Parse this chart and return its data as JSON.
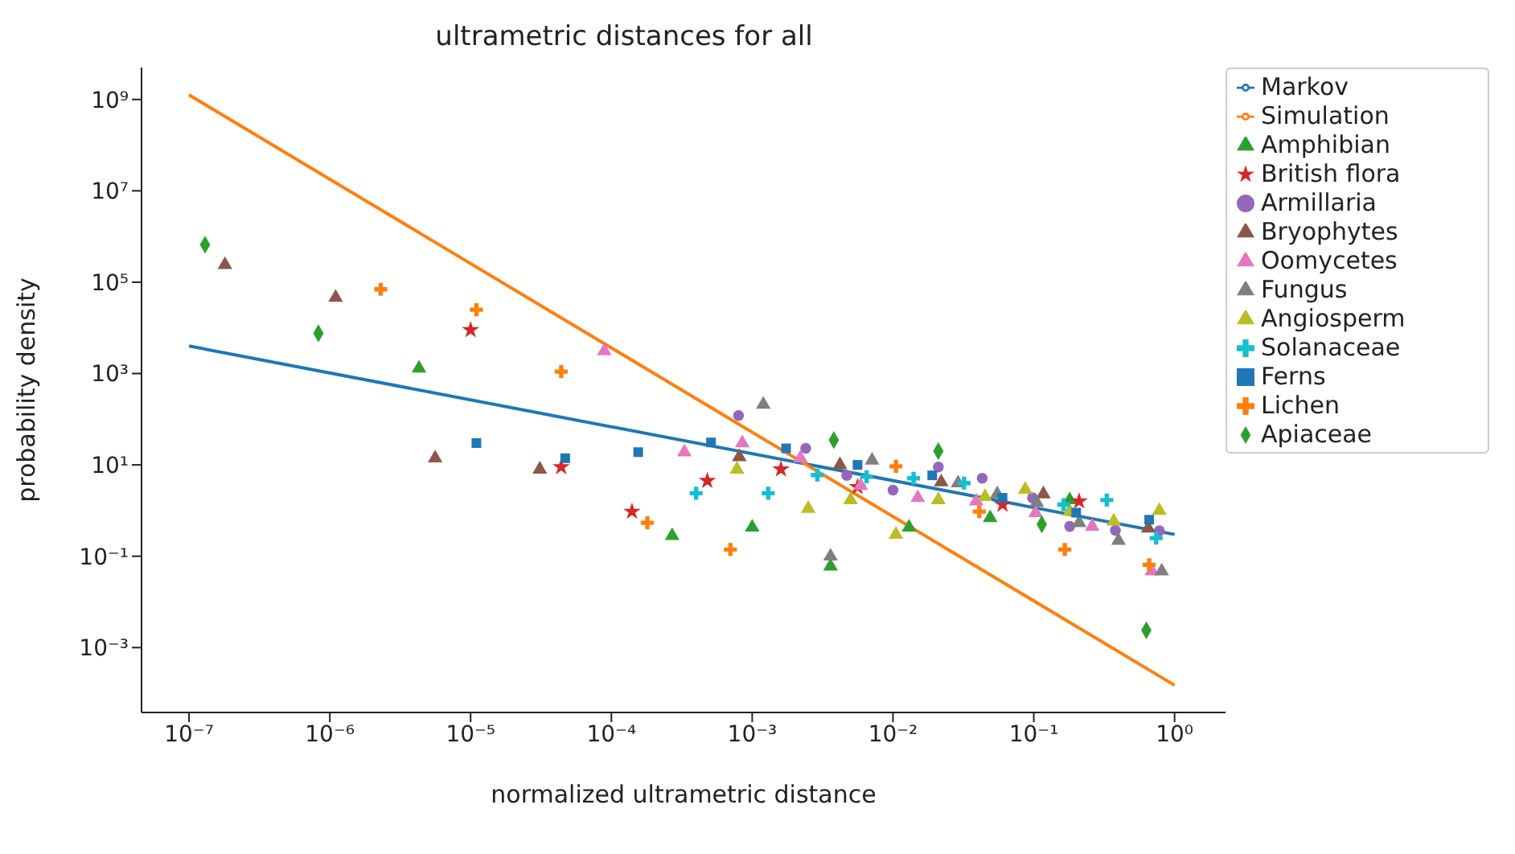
{
  "chart_data": {
    "type": "scatter",
    "title": "ultrametric distances for all",
    "xlabel": "normalized ultrametric distance",
    "ylabel": "probability density",
    "log": "xy",
    "grid": false,
    "legend": "top right",
    "xlim": [
      4.6e-08,
      2.3
    ],
    "ylim": [
      3.8e-05,
      5000000000.0
    ],
    "xticks": [
      {
        "value": 1e-07,
        "label": "10⁻⁷"
      },
      {
        "value": 1e-06,
        "label": "10⁻⁶"
      },
      {
        "value": 1e-05,
        "label": "10⁻⁵"
      },
      {
        "value": 0.0001,
        "label": "10⁻⁴"
      },
      {
        "value": 0.001,
        "label": "10⁻³"
      },
      {
        "value": 0.01,
        "label": "10⁻²"
      },
      {
        "value": 0.1,
        "label": "10⁻¹"
      },
      {
        "value": 1,
        "label": "10⁰"
      }
    ],
    "yticks": [
      {
        "value": 0.001,
        "label": "10⁻³"
      },
      {
        "value": 0.1,
        "label": "10⁻¹"
      },
      {
        "value": 10,
        "label": "10¹"
      },
      {
        "value": 1000,
        "label": "10³"
      },
      {
        "value": 100000.0,
        "label": "10⁵"
      },
      {
        "value": 10000000.0,
        "label": "10⁷"
      },
      {
        "value": 1000000000.0,
        "label": "10⁹"
      }
    ],
    "series": [
      {
        "name": "Markov",
        "type": "line",
        "marker": "none",
        "color": "#1f77b4",
        "x": [
          1e-07,
          1
        ],
        "values": [
          4000,
          0.3
        ]
      },
      {
        "name": "Simulation",
        "type": "line",
        "marker": "none",
        "color": "#ff7f0e",
        "x": [
          1e-07,
          1
        ],
        "values": [
          1260000000.0,
          0.00015
        ]
      },
      {
        "name": "Amphibian",
        "marker": "triangle",
        "color": "#2ca02c",
        "x": [
          4.3e-06,
          0.00027,
          0.001,
          0.0036,
          0.013,
          0.049,
          0.18
        ],
        "values": [
          1300,
          0.28,
          0.43,
          0.06,
          0.43,
          0.69,
          1.7
        ]
      },
      {
        "name": "British flora",
        "marker": "star",
        "color": "#d62728",
        "x": [
          1e-05,
          4.4e-05,
          0.00014,
          0.00048,
          0.0016,
          0.0056,
          0.06,
          0.21
        ],
        "values": [
          9000,
          9,
          0.95,
          4.5,
          8,
          3.3,
          1.35,
          1.6
        ]
      },
      {
        "name": "Armillaria",
        "marker": "circle",
        "color": "#9467bd",
        "x": [
          0.0008,
          0.0024,
          0.0047,
          0.01,
          0.021,
          0.043,
          0.098,
          0.18,
          0.38,
          0.78
        ],
        "values": [
          120,
          23,
          5.9,
          2.8,
          9,
          5.1,
          1.9,
          0.45,
          0.37,
          0.36
        ]
      },
      {
        "name": "Bryophytes",
        "marker": "triangle",
        "color": "#8c564b",
        "x": [
          1.8e-07,
          1.1e-06,
          5.6e-06,
          3.1e-05,
          0.00081,
          0.0042,
          0.022,
          0.117,
          0.65
        ],
        "values": [
          240000,
          46000,
          14,
          8,
          15,
          10,
          4.2,
          2.3,
          0.41
        ]
      },
      {
        "name": "Oomycetes",
        "marker": "triangle",
        "color": "#e377c2",
        "x": [
          8.9e-05,
          0.00033,
          0.00085,
          0.0022,
          0.0059,
          0.015,
          0.039,
          0.103,
          0.26,
          0.69
        ],
        "values": [
          3100,
          19,
          30,
          14,
          3.5,
          1.9,
          1.6,
          0.89,
          0.45,
          0.047
        ]
      },
      {
        "name": "Fungus",
        "marker": "triangle",
        "color": "#7f7f7f",
        "x": [
          0.0012,
          0.0036,
          0.0071,
          0.029,
          0.055,
          0.105,
          0.21,
          0.4,
          0.81
        ],
        "values": [
          210,
          0.1,
          12.6,
          4,
          2.3,
          1.5,
          0.54,
          0.22,
          0.047
        ]
      },
      {
        "name": "Angiosperm",
        "marker": "triangle",
        "color": "#bcbd22",
        "x": [
          0.00078,
          0.0025,
          0.005,
          0.0105,
          0.021,
          0.045,
          0.087,
          0.18,
          0.37,
          0.78
        ],
        "values": [
          8,
          1.1,
          1.7,
          0.3,
          1.7,
          2,
          2.9,
          0.95,
          0.58,
          1.0
        ]
      },
      {
        "name": "Solanaceae",
        "marker": "cross",
        "color": "#17becf",
        "x": [
          0.0004,
          0.0013,
          0.0029,
          0.0065,
          0.014,
          0.032,
          0.163,
          0.33,
          0.74
        ],
        "values": [
          2.4,
          2.4,
          6,
          5.5,
          5.1,
          4,
          1.35,
          1.7,
          0.25
        ]
      },
      {
        "name": "Ferns",
        "marker": "square",
        "color": "#1f77b4",
        "x": [
          1.1e-05,
          4.7e-05,
          0.000155,
          0.00051,
          0.00174,
          0.0056,
          0.019,
          0.06,
          0.2,
          0.66
        ],
        "values": [
          30,
          14,
          19,
          31,
          23,
          10,
          5.9,
          1.9,
          0.9,
          0.63
        ]
      },
      {
        "name": "Lichen",
        "marker": "cross",
        "color": "#ff7f0e",
        "x": [
          2.3e-06,
          1.1e-05,
          4.4e-05,
          0.00018,
          0.0007,
          0.0105,
          0.041,
          0.166,
          0.66
        ],
        "values": [
          70000,
          25000,
          1100,
          0.54,
          0.14,
          9.3,
          0.95,
          0.14,
          0.065
        ]
      },
      {
        "name": "Apiaceae",
        "marker": "diamond",
        "color": "#2ca02c",
        "x": [
          1.3e-07,
          8.3e-07,
          0.0038,
          0.021,
          0.114,
          0.63
        ],
        "values": [
          660000,
          7600,
          35,
          20,
          0.5,
          0.0024
        ]
      }
    ]
  }
}
